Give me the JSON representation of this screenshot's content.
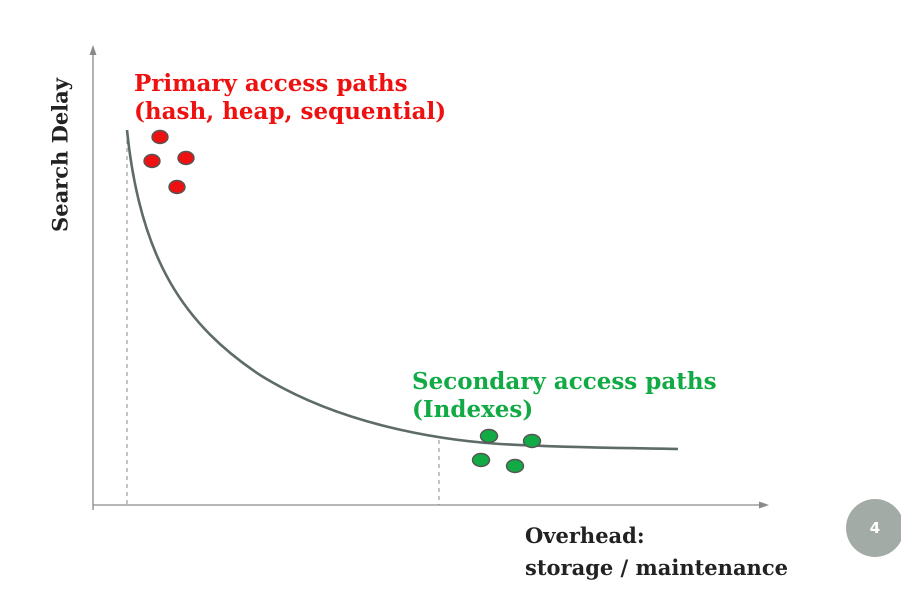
{
  "diagram": {
    "primary": {
      "line1": "Primary access paths",
      "line2": "(hash, heap, sequential)",
      "color": "#ee1111",
      "points": 4
    },
    "secondary": {
      "line1": "Secondary access paths",
      "line2": "(Indexes)",
      "color": "#11aa44",
      "points": 4
    },
    "axes": {
      "y_label": "Search Delay",
      "x_label_line1": "Overhead:",
      "x_label_line2": "storage / maintenance"
    },
    "curve_color": "#5e6b66",
    "axis_color": "#8a8a8a"
  },
  "page_number": {
    "value": "4",
    "color": "#a3aba6"
  }
}
